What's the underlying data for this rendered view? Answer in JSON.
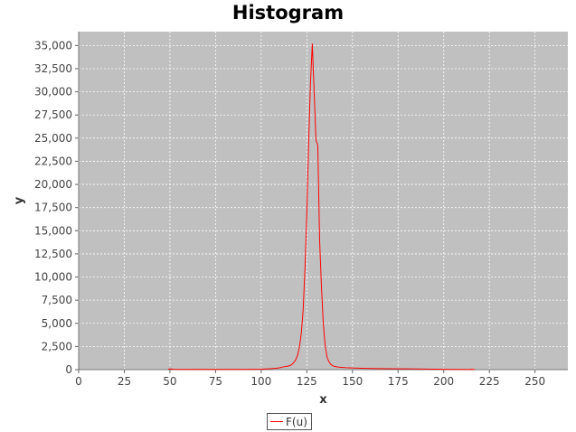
{
  "chart_data": {
    "type": "line",
    "title": "Histogram",
    "xlabel": "x",
    "ylabel": "y",
    "xlim": [
      0,
      268
    ],
    "ylim": [
      0,
      36500
    ],
    "x_ticks": [
      0,
      25,
      50,
      75,
      100,
      125,
      150,
      175,
      200,
      225,
      250
    ],
    "x_tick_labels": [
      "0",
      "25",
      "50",
      "75",
      "100",
      "125",
      "150",
      "175",
      "200",
      "225",
      "250"
    ],
    "y_ticks": [
      0,
      2500,
      5000,
      7500,
      10000,
      12500,
      15000,
      17500,
      20000,
      22500,
      25000,
      27500,
      30000,
      32500,
      35000
    ],
    "y_tick_labels": [
      "0",
      "2,500",
      "5,000",
      "7,500",
      "10,000",
      "12,500",
      "15,000",
      "17,500",
      "20,000",
      "22,500",
      "25,000",
      "27,500",
      "30,000",
      "32,500",
      "35,000"
    ],
    "grid": true,
    "legend_position": "bottom-center",
    "background": "#c0c0c0",
    "series": [
      {
        "name": "F(u)",
        "color": "#ff0000",
        "x": [
          49,
          50,
          51,
          52,
          60,
          70,
          80,
          90,
          100,
          105,
          108,
          110,
          112,
          114,
          116,
          117,
          118,
          119,
          120,
          121,
          122,
          123,
          124,
          125,
          126,
          127,
          128,
          129,
          130,
          131,
          132,
          133,
          134,
          135,
          136,
          137,
          138,
          139,
          140,
          142,
          144,
          146,
          148,
          150,
          155,
          160,
          170,
          180,
          190,
          200,
          205,
          210,
          213,
          215,
          217
        ],
        "y": [
          50,
          80,
          60,
          40,
          30,
          30,
          30,
          30,
          50,
          100,
          150,
          200,
          300,
          350,
          450,
          600,
          800,
          1100,
          1600,
          2500,
          4000,
          6500,
          11000,
          17000,
          24500,
          31000,
          35200,
          30000,
          24800,
          24200,
          14000,
          9000,
          5000,
          2700,
          1400,
          900,
          600,
          450,
          350,
          280,
          250,
          220,
          200,
          180,
          150,
          120,
          100,
          80,
          60,
          40,
          30,
          20,
          10,
          40,
          15
        ]
      }
    ]
  }
}
